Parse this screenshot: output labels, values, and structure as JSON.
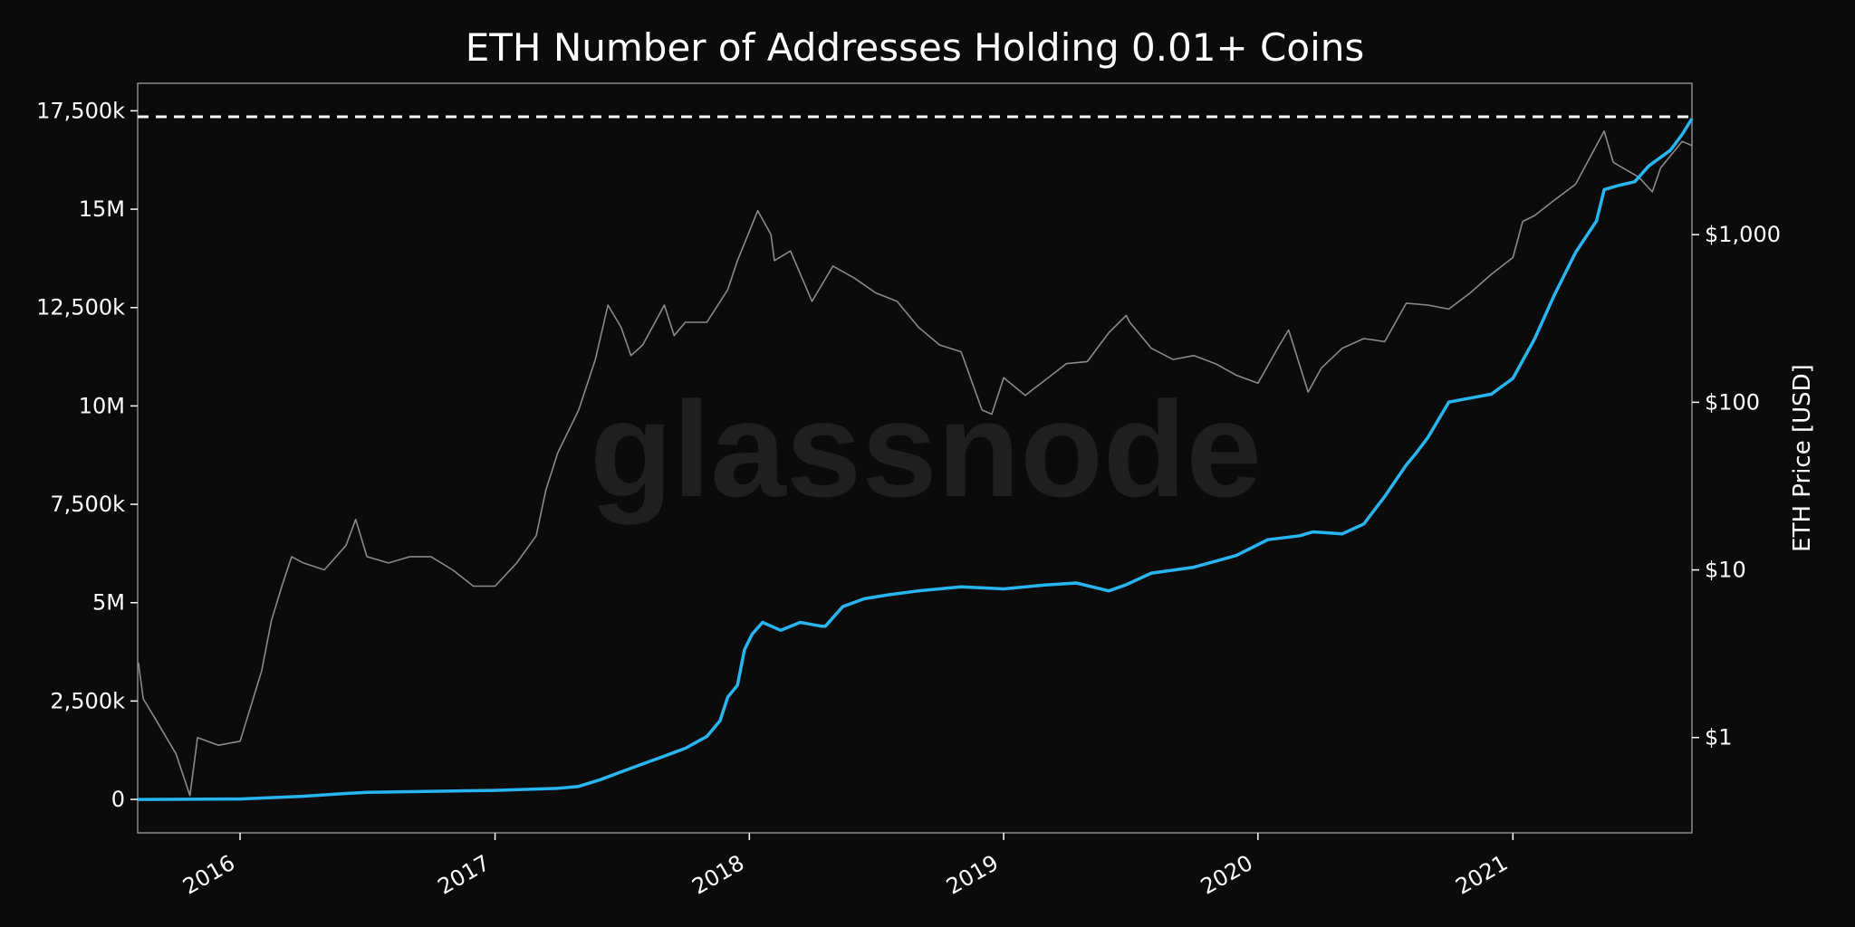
{
  "chart_data": {
    "type": "line",
    "title": "ETH Number of Addresses Holding 0.01+ Coins",
    "watermark": "glassnode",
    "xlabel": "",
    "ylabel_left": "",
    "ylabel_right": "ETH Price [USD]",
    "x_ticks": [
      "2016",
      "2017",
      "2018",
      "2019",
      "2020",
      "2021"
    ],
    "y_left_ticks": [
      {
        "value": 0,
        "label": "0"
      },
      {
        "value": 2500000,
        "label": "2,500k"
      },
      {
        "value": 5000000,
        "label": "5M"
      },
      {
        "value": 7500000,
        "label": "7,500k"
      },
      {
        "value": 10000000,
        "label": "10M"
      },
      {
        "value": 12500000,
        "label": "12,500k"
      },
      {
        "value": 15000000,
        "label": "15M"
      },
      {
        "value": 17500000,
        "label": "17,500k"
      }
    ],
    "y_right_ticks": [
      {
        "value": 1,
        "label": "$1"
      },
      {
        "value": 10,
        "label": "$10"
      },
      {
        "value": 100,
        "label": "$100"
      },
      {
        "value": 1000,
        "label": "$1,000"
      }
    ],
    "ylim_left": [
      -850000,
      18200000
    ],
    "ylim_right": [
      0.27,
      8000
    ],
    "xlim": [
      "2015-08-07",
      "2021-09-15"
    ],
    "y_right_scale": "log",
    "reference_line": {
      "value": 17350000,
      "style": "dashed",
      "color": "#ffffff"
    },
    "grid": false,
    "series": [
      {
        "axis": "left",
        "color": "#29b6f0",
        "x": [
          "2015-08-07",
          "2015-12-31",
          "2016-03-31",
          "2016-06-01",
          "2016-07-01",
          "2016-12-31",
          "2017-03-31",
          "2017-05-01",
          "2017-06-01",
          "2017-07-01",
          "2017-08-01",
          "2017-09-01",
          "2017-10-01",
          "2017-11-01",
          "2017-11-20",
          "2017-12-01",
          "2017-12-15",
          "2017-12-25",
          "2018-01-05",
          "2018-01-20",
          "2018-02-15",
          "2018-03-15",
          "2018-04-15",
          "2018-04-20",
          "2018-05-15",
          "2018-06-15",
          "2018-07-20",
          "2018-09-01",
          "2018-11-01",
          "2019-01-01",
          "2019-03-01",
          "2019-04-15",
          "2019-06-01",
          "2019-06-25",
          "2019-08-01",
          "2019-10-01",
          "2019-12-01",
          "2020-01-15",
          "2020-03-01",
          "2020-03-20",
          "2020-05-01",
          "2020-06-01",
          "2020-07-01",
          "2020-08-01",
          "2020-08-15",
          "2020-09-01",
          "2020-10-01",
          "2020-11-01",
          "2020-12-01",
          "2021-01-01",
          "2021-02-01",
          "2021-03-01",
          "2021-04-01",
          "2021-05-01",
          "2021-05-12",
          "2021-06-01",
          "2021-06-25",
          "2021-07-15",
          "2021-08-15",
          "2021-09-01",
          "2021-09-15"
        ],
        "y": [
          0,
          10000,
          80000,
          150000,
          180000,
          230000,
          280000,
          330000,
          500000,
          700000,
          900000,
          1100000,
          1300000,
          1600000,
          2000000,
          2600000,
          2900000,
          3800000,
          4200000,
          4500000,
          4300000,
          4500000,
          4400000,
          4400000,
          4900000,
          5100000,
          5200000,
          5300000,
          5400000,
          5350000,
          5450000,
          5500000,
          5300000,
          5450000,
          5750000,
          5900000,
          6200000,
          6600000,
          6700000,
          6800000,
          6750000,
          7000000,
          7700000,
          8500000,
          8800000,
          9200000,
          10100000,
          10200000,
          10300000,
          10700000,
          11700000,
          12800000,
          13900000,
          14700000,
          15500000,
          15600000,
          15700000,
          16100000,
          16500000,
          16900000,
          17300000
        ]
      },
      {
        "axis": "right",
        "color": "#8a8a8a",
        "x": [
          "2015-08-08",
          "2015-08-15",
          "2015-09-01",
          "2015-10-01",
          "2015-10-21",
          "2015-11-01",
          "2015-12-01",
          "2016-01-01",
          "2016-02-01",
          "2016-02-15",
          "2016-03-01",
          "2016-03-15",
          "2016-04-01",
          "2016-05-01",
          "2016-06-01",
          "2016-06-15",
          "2016-07-01",
          "2016-08-01",
          "2016-09-01",
          "2016-10-01",
          "2016-11-01",
          "2016-12-01",
          "2017-01-01",
          "2017-02-01",
          "2017-03-01",
          "2017-03-15",
          "2017-04-01",
          "2017-05-01",
          "2017-05-25",
          "2017-06-12",
          "2017-07-01",
          "2017-07-15",
          "2017-08-01",
          "2017-09-01",
          "2017-09-15",
          "2017-10-01",
          "2017-11-01",
          "2017-12-01",
          "2017-12-15",
          "2018-01-13",
          "2018-02-01",
          "2018-02-06",
          "2018-03-01",
          "2018-04-01",
          "2018-05-01",
          "2018-06-01",
          "2018-07-01",
          "2018-08-01",
          "2018-09-01",
          "2018-10-01",
          "2018-11-01",
          "2018-12-01",
          "2018-12-15",
          "2019-01-01",
          "2019-02-01",
          "2019-03-01",
          "2019-04-01",
          "2019-05-01",
          "2019-06-01",
          "2019-06-26",
          "2019-07-01",
          "2019-08-01",
          "2019-09-01",
          "2019-10-01",
          "2019-11-01",
          "2019-12-01",
          "2020-01-01",
          "2020-02-01",
          "2020-02-14",
          "2020-03-13",
          "2020-04-01",
          "2020-05-01",
          "2020-06-01",
          "2020-07-01",
          "2020-08-01",
          "2020-09-01",
          "2020-10-01",
          "2020-11-01",
          "2020-12-01",
          "2021-01-01",
          "2021-01-15",
          "2021-02-01",
          "2021-03-01",
          "2021-04-01",
          "2021-05-12",
          "2021-05-25",
          "2021-06-01",
          "2021-07-01",
          "2021-07-20",
          "2021-08-01",
          "2021-09-01",
          "2021-09-15"
        ],
        "y": [
          2.8,
          1.7,
          1.3,
          0.8,
          0.45,
          1.0,
          0.9,
          0.95,
          2.5,
          5.0,
          8.0,
          12.0,
          11.0,
          10.0,
          14.0,
          20.0,
          12.0,
          11.0,
          12.0,
          12.0,
          10.0,
          8.0,
          8.0,
          11.0,
          16.0,
          30.0,
          50.0,
          90.0,
          180.0,
          380.0,
          280.0,
          190.0,
          220.0,
          380.0,
          250.0,
          300.0,
          300.0,
          470.0,
          700.0,
          1390.0,
          1000.0,
          700.0,
          800.0,
          400.0,
          650.0,
          550.0,
          450.0,
          400.0,
          280.0,
          220.0,
          200.0,
          90.0,
          85.0,
          140.0,
          110.0,
          135.0,
          170.0,
          175.0,
          260.0,
          330.0,
          300.0,
          210.0,
          180.0,
          190.0,
          170.0,
          145.0,
          130.0,
          220.0,
          270.0,
          115.0,
          160.0,
          210.0,
          240.0,
          230.0,
          390.0,
          380.0,
          360.0,
          450.0,
          580.0,
          730.0,
          1200.0,
          1300.0,
          1600.0,
          2000.0,
          4150.0,
          2700.0,
          2600.0,
          2200.0,
          1800.0,
          2500.0,
          3600.0,
          3400.0
        ]
      }
    ]
  }
}
